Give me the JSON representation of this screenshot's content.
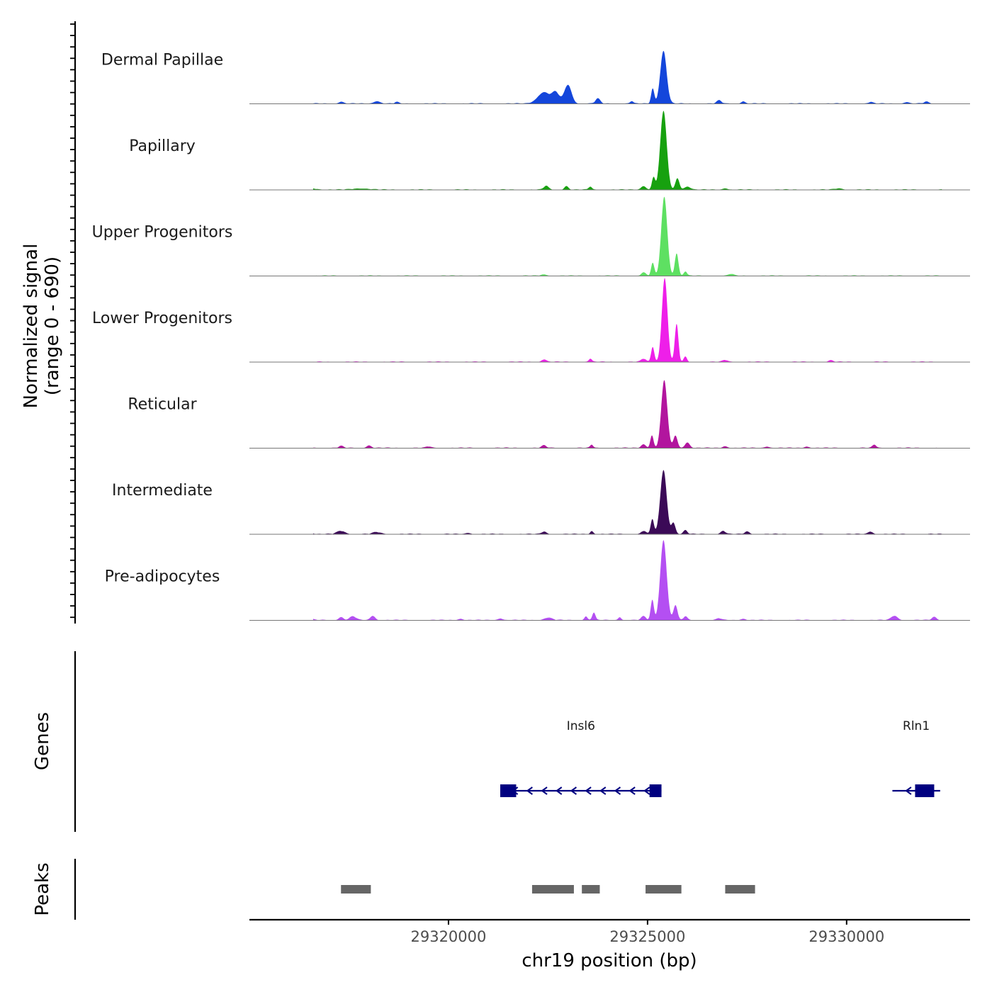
{
  "chart_data": {
    "type": "area",
    "title": "",
    "ylabel_line1": "Normalized signal",
    "ylabel_line2": "(range 0 - 690)",
    "y_range": [
      0,
      690
    ],
    "xlabel": "chr19 position (bp)",
    "x_range": [
      29315000,
      29333100
    ],
    "x_ticks": [
      29320000,
      29325000,
      29330000
    ],
    "x_tick_labels": [
      "29320000",
      "29325000",
      "29330000"
    ],
    "tracks": [
      {
        "name": "Dermal Papillae",
        "color": "#1446db",
        "peaks": [
          [
            29325400,
            420,
            80
          ],
          [
            29325130,
            120,
            40
          ],
          [
            29322400,
            90,
            160
          ],
          [
            29323000,
            150,
            90
          ],
          [
            29322700,
            80,
            90
          ],
          [
            29323750,
            40,
            60
          ],
          [
            29324600,
            20,
            40
          ],
          [
            29326800,
            25,
            60
          ],
          [
            29327400,
            18,
            50
          ],
          [
            29317300,
            15,
            60
          ],
          [
            29318200,
            20,
            80
          ],
          [
            29318700,
            12,
            50
          ],
          [
            29330600,
            12,
            60
          ],
          [
            29331500,
            12,
            60
          ],
          [
            29332000,
            15,
            60
          ]
        ]
      },
      {
        "name": "Papillary",
        "color": "#17a10f",
        "peaks": [
          [
            29325400,
            630,
            80
          ],
          [
            29325150,
            100,
            40
          ],
          [
            29325750,
            90,
            50
          ],
          [
            29324900,
            30,
            60
          ],
          [
            29322450,
            30,
            60
          ],
          [
            29322960,
            30,
            50
          ],
          [
            29323560,
            25,
            40
          ],
          [
            29326000,
            25,
            80
          ],
          [
            29316500,
            10,
            200
          ],
          [
            29317800,
            10,
            200
          ],
          [
            29326950,
            12,
            60
          ],
          [
            29329800,
            10,
            100
          ]
        ]
      },
      {
        "name": "Upper Progenitors",
        "color": "#5ee062",
        "peaks": [
          [
            29325420,
            630,
            75
          ],
          [
            29325730,
            180,
            45
          ],
          [
            29325130,
            100,
            40
          ],
          [
            29325950,
            35,
            40
          ],
          [
            29324900,
            25,
            60
          ],
          [
            29327100,
            15,
            60
          ],
          [
            29322400,
            10,
            80
          ]
        ]
      },
      {
        "name": "Lower Progenitors",
        "color": "#ee1fe9",
        "peaks": [
          [
            29325430,
            670,
            70
          ],
          [
            29325730,
            300,
            45
          ],
          [
            29325130,
            120,
            40
          ],
          [
            29325950,
            40,
            40
          ],
          [
            29324900,
            25,
            60
          ],
          [
            29322400,
            20,
            60
          ],
          [
            29323560,
            25,
            40
          ],
          [
            29326950,
            15,
            60
          ],
          [
            29329600,
            12,
            60
          ]
        ]
      },
      {
        "name": "Reticular",
        "color": "#b2159e",
        "peaks": [
          [
            29325420,
            540,
            75
          ],
          [
            29325700,
            100,
            50
          ],
          [
            29325110,
            100,
            40
          ],
          [
            29326000,
            45,
            60
          ],
          [
            29324900,
            30,
            60
          ],
          [
            29323600,
            25,
            40
          ],
          [
            29318000,
            20,
            60
          ],
          [
            29322400,
            20,
            60
          ],
          [
            29317300,
            15,
            60
          ],
          [
            29319500,
            12,
            60
          ],
          [
            29330700,
            25,
            50
          ],
          [
            29329000,
            12,
            60
          ],
          [
            29326950,
            15,
            60
          ],
          [
            29328000,
            12,
            60
          ]
        ]
      },
      {
        "name": "Intermediate",
        "color": "#3b0a57",
        "peaks": [
          [
            29325400,
            510,
            80
          ],
          [
            29325120,
            120,
            40
          ],
          [
            29325650,
            90,
            50
          ],
          [
            29325950,
            30,
            50
          ],
          [
            29324900,
            25,
            60
          ],
          [
            29317300,
            25,
            100
          ],
          [
            29316500,
            15,
            80
          ],
          [
            29318200,
            15,
            100
          ],
          [
            29322400,
            20,
            60
          ],
          [
            29323600,
            25,
            40
          ],
          [
            29326900,
            25,
            60
          ],
          [
            29327500,
            20,
            60
          ],
          [
            29330600,
            20,
            60
          ],
          [
            29320500,
            10,
            60
          ]
        ]
      },
      {
        "name": "Pre-adipocytes",
        "color": "#b44ff2",
        "peaks": [
          [
            29325400,
            640,
            80
          ],
          [
            29325120,
            160,
            40
          ],
          [
            29325700,
            120,
            50
          ],
          [
            29325950,
            30,
            50
          ],
          [
            29324900,
            30,
            60
          ],
          [
            29323650,
            60,
            40
          ],
          [
            29323450,
            30,
            40
          ],
          [
            29324300,
            25,
            40
          ],
          [
            29317600,
            30,
            80
          ],
          [
            29318100,
            35,
            60
          ],
          [
            29317300,
            25,
            60
          ],
          [
            29316500,
            15,
            80
          ],
          [
            29322500,
            20,
            100
          ],
          [
            29321300,
            15,
            60
          ],
          [
            29320300,
            12,
            60
          ],
          [
            29331200,
            35,
            80
          ],
          [
            29332200,
            25,
            60
          ],
          [
            29327400,
            12,
            60
          ],
          [
            29326800,
            15,
            60
          ]
        ]
      }
    ],
    "genes_label": "Genes",
    "genes": [
      {
        "name": "Insl6",
        "color": "#000080",
        "start": 29321300,
        "end": 29325350,
        "strand": "-",
        "exons": [
          [
            29321300,
            29321700
          ],
          [
            29325050,
            29325350
          ]
        ]
      },
      {
        "name": "Rln1",
        "color": "#000080",
        "start": 29331150,
        "end": 29332350,
        "strand": "-",
        "exons": [
          [
            29331720,
            29332200
          ]
        ]
      }
    ],
    "peaks_label": "Peaks",
    "peak_regions": [
      [
        29317300,
        29318050
      ],
      [
        29322100,
        29323150
      ],
      [
        29323350,
        29323800
      ],
      [
        29324950,
        29325850
      ],
      [
        29326950,
        29327700
      ]
    ]
  }
}
